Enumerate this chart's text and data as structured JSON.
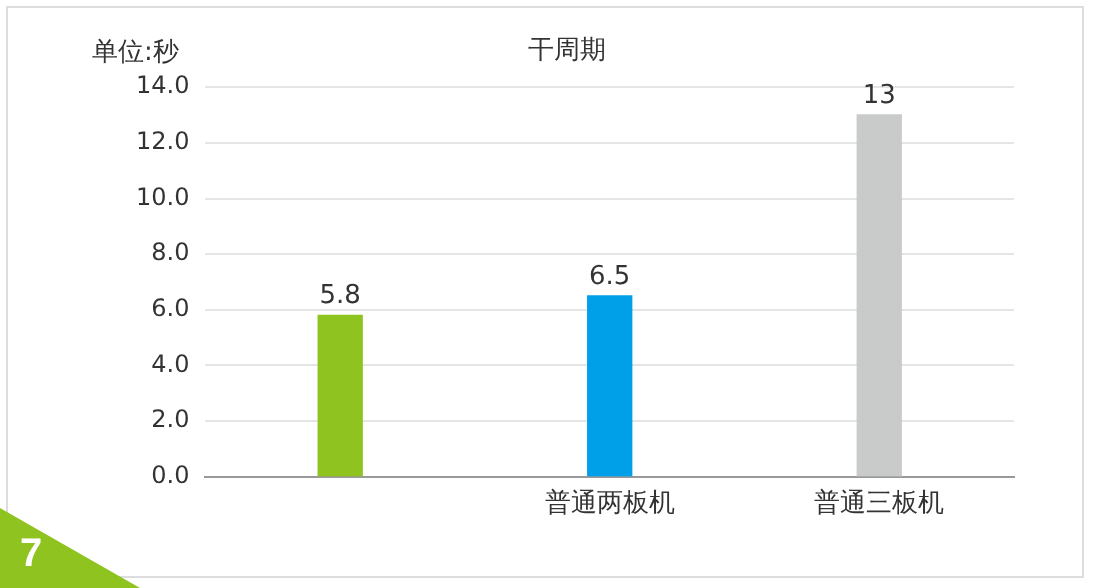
{
  "chart_data": {
    "type": "bar",
    "title": "干周期",
    "ylabel": "单位:秒",
    "categories": [
      null,
      "普通两板机",
      "普通三板机"
    ],
    "values": [
      5.8,
      6.5,
      13
    ],
    "colors": [
      "#8fc31f",
      "#00a0e9",
      "#c9caca"
    ],
    "ylim": [
      0,
      14
    ],
    "yticks": [
      {
        "value": 0,
        "label": "0.0"
      },
      {
        "value": 2,
        "label": "2.0"
      },
      {
        "value": 4,
        "label": "4.0"
      },
      {
        "value": 6,
        "label": "6.0"
      },
      {
        "value": 8,
        "label": "8.0"
      },
      {
        "value": 10,
        "label": "10.0"
      },
      {
        "value": 12,
        "label": "12.0"
      },
      {
        "value": 14,
        "label": "14.0"
      }
    ],
    "grid": "y",
    "data_labels": true,
    "legend": false,
    "annotations": [
      "7"
    ]
  }
}
